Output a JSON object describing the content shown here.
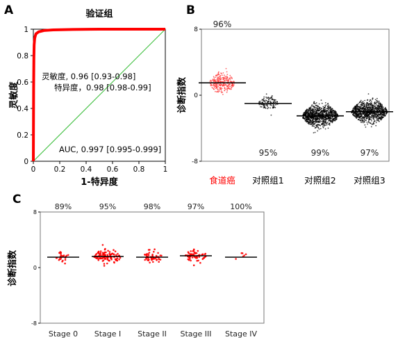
{
  "chart_data": [
    {
      "panel": "A",
      "type": "line",
      "title": "验证组",
      "xlabel": "1-特异度",
      "ylabel": "灵敏度",
      "xlim": [
        0,
        1
      ],
      "ylim": [
        0,
        1
      ],
      "xticks": [
        "0",
        "0.2",
        "0.4",
        "0.6",
        "0.8",
        "1"
      ],
      "yticks": [
        "0",
        "0.2",
        "0.4",
        "0.6",
        "0.8",
        "1"
      ],
      "roc": {
        "x": [
          0,
          0.002,
          0.004,
          0.006,
          0.01,
          0.015,
          0.02,
          0.04,
          0.08,
          0.15,
          0.3,
          0.5,
          0.7,
          1.0
        ],
        "y": [
          0,
          0.55,
          0.78,
          0.88,
          0.93,
          0.95,
          0.965,
          0.98,
          0.99,
          0.995,
          0.998,
          1.0,
          1.0,
          1.0
        ],
        "color": "#ff0000"
      },
      "reference_line": {
        "x": [
          0,
          1
        ],
        "y": [
          0,
          1
        ],
        "color": "#33bb33"
      },
      "annotations": {
        "sensitivity": "灵敏度, 0.96 [0.93-0.98]",
        "specificity": "特异度，0.98 [0.98-0.99]",
        "auc": "AUC, 0.997 [0.995-0.999]"
      }
    },
    {
      "panel": "B",
      "type": "scatter",
      "ylabel": "诊断指数",
      "ylim": [
        -8,
        8
      ],
      "yticks": [
        "8",
        "0",
        "-8"
      ],
      "categories": [
        "食道癌",
        "对照组1",
        "对照组2",
        "对照组3"
      ],
      "category_colors": [
        "#ff0000",
        "#000000",
        "#000000",
        "#000000"
      ],
      "groups": [
        {
          "name": "食道癌",
          "median": 1.5,
          "spread": 1.0,
          "range": [
            -1.5,
            6.5
          ],
          "n": 260,
          "percent": "96%",
          "color": "#ff3333"
        },
        {
          "name": "对照组1",
          "median": -1.0,
          "spread": 0.7,
          "range": [
            -4.0,
            1.0
          ],
          "n": 120,
          "percent": "95%",
          "color": "#000000"
        },
        {
          "name": "对照组2",
          "median": -2.5,
          "spread": 1.1,
          "range": [
            -5.5,
            2.5
          ],
          "n": 900,
          "percent": "99%",
          "color": "#000000"
        },
        {
          "name": "对照组3",
          "median": -2.0,
          "spread": 1.1,
          "range": [
            -5.0,
            0.8
          ],
          "n": 900,
          "percent": "97%",
          "color": "#000000"
        }
      ]
    },
    {
      "panel": "C",
      "type": "scatter",
      "ylabel": "诊断指数",
      "ylim": [
        -8,
        8
      ],
      "yticks": [
        "8",
        "0",
        "-8"
      ],
      "categories": [
        "Stage 0",
        "Stage I",
        "Stage II",
        "Stage III",
        "Stage IV"
      ],
      "groups": [
        {
          "name": "Stage 0",
          "median": 1.5,
          "spread": 0.8,
          "range": [
            -0.5,
            4.0
          ],
          "n": 24,
          "percent": "89%"
        },
        {
          "name": "Stage I",
          "median": 1.6,
          "spread": 0.8,
          "range": [
            -0.5,
            6.5
          ],
          "n": 110,
          "percent": "95%"
        },
        {
          "name": "Stage II",
          "median": 1.5,
          "spread": 0.8,
          "range": [
            -0.5,
            3.5
          ],
          "n": 55,
          "percent": "98%"
        },
        {
          "name": "Stage III",
          "median": 1.7,
          "spread": 0.8,
          "range": [
            -1.5,
            3.5
          ],
          "n": 65,
          "percent": "97%"
        },
        {
          "name": "Stage IV",
          "median": 1.5,
          "spread": 0.6,
          "range": [
            0.5,
            2.5
          ],
          "n": 6,
          "percent": "100%"
        }
      ],
      "color": "#ff0000"
    }
  ],
  "panels": {
    "a": "A",
    "b": "B",
    "c": "C"
  }
}
